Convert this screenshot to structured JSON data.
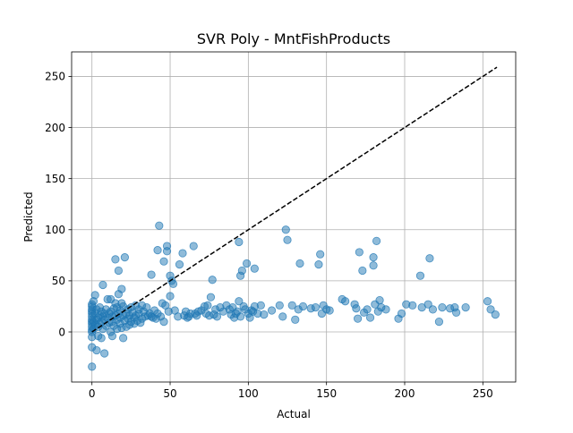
{
  "chart_data": {
    "type": "scatter",
    "title": "SVR Poly - MntFishProducts",
    "xlabel": "Actual",
    "ylabel": "Predicted",
    "xlim": [
      -13,
      271
    ],
    "ylim": [
      -49,
      274
    ],
    "xticks": [
      0,
      50,
      100,
      150,
      200,
      250
    ],
    "yticks": [
      0,
      50,
      100,
      150,
      200,
      250
    ],
    "grid": true,
    "point_color": "#1f77b4",
    "point_alpha": 0.5,
    "reference_line": {
      "style": "dashed",
      "color": "#000000",
      "from": [
        0,
        0
      ],
      "to": [
        259,
        259
      ]
    },
    "series": [
      {
        "points": [
          [
            0,
            -34
          ],
          [
            0,
            -15
          ],
          [
            0,
            -5
          ],
          [
            0,
            0
          ],
          [
            0,
            2
          ],
          [
            0,
            5
          ],
          [
            0,
            8
          ],
          [
            0,
            10
          ],
          [
            0,
            12
          ],
          [
            0,
            15
          ],
          [
            0,
            18
          ],
          [
            0,
            20
          ],
          [
            0,
            22
          ],
          [
            0,
            25
          ],
          [
            0,
            27
          ],
          [
            1,
            3
          ],
          [
            1,
            10
          ],
          [
            1,
            30
          ],
          [
            2,
            36
          ],
          [
            2,
            18
          ],
          [
            2,
            7
          ],
          [
            3,
            -18
          ],
          [
            3,
            12
          ],
          [
            3,
            22
          ],
          [
            4,
            5
          ],
          [
            4,
            14
          ],
          [
            4,
            -4
          ],
          [
            5,
            8
          ],
          [
            5,
            16
          ],
          [
            5,
            24
          ],
          [
            6,
            -6
          ],
          [
            6,
            10
          ],
          [
            6,
            20
          ],
          [
            7,
            46
          ],
          [
            7,
            15
          ],
          [
            7,
            3
          ],
          [
            8,
            -21
          ],
          [
            8,
            12
          ],
          [
            8,
            18
          ],
          [
            9,
            6
          ],
          [
            9,
            22
          ],
          [
            10,
            14
          ],
          [
            10,
            32
          ],
          [
            11,
            9
          ],
          [
            11,
            18
          ],
          [
            12,
            0
          ],
          [
            12,
            32
          ],
          [
            12,
            20
          ],
          [
            13,
            -4
          ],
          [
            13,
            15
          ],
          [
            13,
            10
          ],
          [
            14,
            23
          ],
          [
            14,
            6
          ],
          [
            15,
            71
          ],
          [
            15,
            28
          ],
          [
            15,
            16
          ],
          [
            16,
            3
          ],
          [
            16,
            12
          ],
          [
            16,
            24
          ],
          [
            17,
            60
          ],
          [
            17,
            18
          ],
          [
            17,
            37
          ],
          [
            18,
            8
          ],
          [
            18,
            21
          ],
          [
            18,
            14
          ],
          [
            19,
            42
          ],
          [
            19,
            28
          ],
          [
            19,
            4
          ],
          [
            20,
            -6
          ],
          [
            20,
            16
          ],
          [
            20,
            25
          ],
          [
            21,
            73
          ],
          [
            21,
            11
          ],
          [
            22,
            18
          ],
          [
            22,
            5
          ],
          [
            23,
            22
          ],
          [
            23,
            13
          ],
          [
            24,
            16
          ],
          [
            24,
            7
          ],
          [
            25,
            24
          ],
          [
            25,
            10
          ],
          [
            26,
            19
          ],
          [
            27,
            14
          ],
          [
            27,
            8
          ],
          [
            28,
            26
          ],
          [
            28,
            16
          ],
          [
            29,
            11
          ],
          [
            30,
            22
          ],
          [
            30,
            18
          ],
          [
            31,
            9
          ],
          [
            32,
            26
          ],
          [
            32,
            13
          ],
          [
            33,
            20
          ],
          [
            34,
            15
          ],
          [
            35,
            24
          ],
          [
            36,
            16
          ],
          [
            37,
            18
          ],
          [
            38,
            56
          ],
          [
            38,
            15
          ],
          [
            39,
            14
          ],
          [
            40,
            21
          ],
          [
            41,
            13
          ],
          [
            42,
            80
          ],
          [
            42,
            18
          ],
          [
            43,
            104
          ],
          [
            44,
            15
          ],
          [
            45,
            28
          ],
          [
            46,
            69
          ],
          [
            46,
            10
          ],
          [
            47,
            26
          ],
          [
            48,
            84
          ],
          [
            48,
            79
          ],
          [
            49,
            20
          ],
          [
            50,
            55
          ],
          [
            50,
            35
          ],
          [
            51,
            50
          ],
          [
            52,
            47
          ],
          [
            53,
            21
          ],
          [
            55,
            15
          ],
          [
            56,
            66
          ],
          [
            58,
            77
          ],
          [
            59,
            16
          ],
          [
            60,
            20
          ],
          [
            61,
            14
          ],
          [
            62,
            15
          ],
          [
            63,
            18
          ],
          [
            65,
            84
          ],
          [
            66,
            18
          ],
          [
            67,
            16
          ],
          [
            68,
            20
          ],
          [
            70,
            21
          ],
          [
            72,
            25
          ],
          [
            73,
            18
          ],
          [
            74,
            26
          ],
          [
            75,
            16
          ],
          [
            76,
            34
          ],
          [
            77,
            51
          ],
          [
            78,
            17
          ],
          [
            79,
            22
          ],
          [
            80,
            15
          ],
          [
            82,
            24
          ],
          [
            84,
            20
          ],
          [
            86,
            26
          ],
          [
            88,
            22
          ],
          [
            89,
            17
          ],
          [
            90,
            24
          ],
          [
            91,
            14
          ],
          [
            92,
            18
          ],
          [
            93,
            20
          ],
          [
            94,
            30
          ],
          [
            94,
            88
          ],
          [
            95,
            55
          ],
          [
            95,
            15
          ],
          [
            96,
            60
          ],
          [
            97,
            25
          ],
          [
            98,
            22
          ],
          [
            99,
            67
          ],
          [
            100,
            18
          ],
          [
            101,
            14
          ],
          [
            102,
            21
          ],
          [
            103,
            20
          ],
          [
            104,
            62
          ],
          [
            104,
            25
          ],
          [
            106,
            18
          ],
          [
            108,
            26
          ],
          [
            110,
            17
          ],
          [
            115,
            21
          ],
          [
            120,
            26
          ],
          [
            122,
            15
          ],
          [
            124,
            100
          ],
          [
            125,
            90
          ],
          [
            128,
            26
          ],
          [
            130,
            12
          ],
          [
            132,
            22
          ],
          [
            133,
            67
          ],
          [
            135,
            25
          ],
          [
            140,
            23
          ],
          [
            143,
            24
          ],
          [
            145,
            66
          ],
          [
            146,
            76
          ],
          [
            147,
            18
          ],
          [
            148,
            26
          ],
          [
            150,
            22
          ],
          [
            152,
            21
          ],
          [
            160,
            32
          ],
          [
            162,
            30
          ],
          [
            168,
            27
          ],
          [
            169,
            23
          ],
          [
            170,
            13
          ],
          [
            171,
            78
          ],
          [
            173,
            60
          ],
          [
            174,
            19
          ],
          [
            176,
            22
          ],
          [
            178,
            14
          ],
          [
            180,
            73
          ],
          [
            180,
            65
          ],
          [
            181,
            27
          ],
          [
            182,
            89
          ],
          [
            183,
            20
          ],
          [
            184,
            31
          ],
          [
            185,
            24
          ],
          [
            188,
            22
          ],
          [
            196,
            13
          ],
          [
            198,
            18
          ],
          [
            201,
            27
          ],
          [
            205,
            26
          ],
          [
            210,
            55
          ],
          [
            211,
            24
          ],
          [
            215,
            27
          ],
          [
            216,
            72
          ],
          [
            218,
            22
          ],
          [
            222,
            10
          ],
          [
            224,
            24
          ],
          [
            229,
            23
          ],
          [
            232,
            24
          ],
          [
            233,
            19
          ],
          [
            239,
            24
          ],
          [
            253,
            30
          ],
          [
            255,
            22
          ],
          [
            258,
            17
          ]
        ]
      }
    ]
  }
}
